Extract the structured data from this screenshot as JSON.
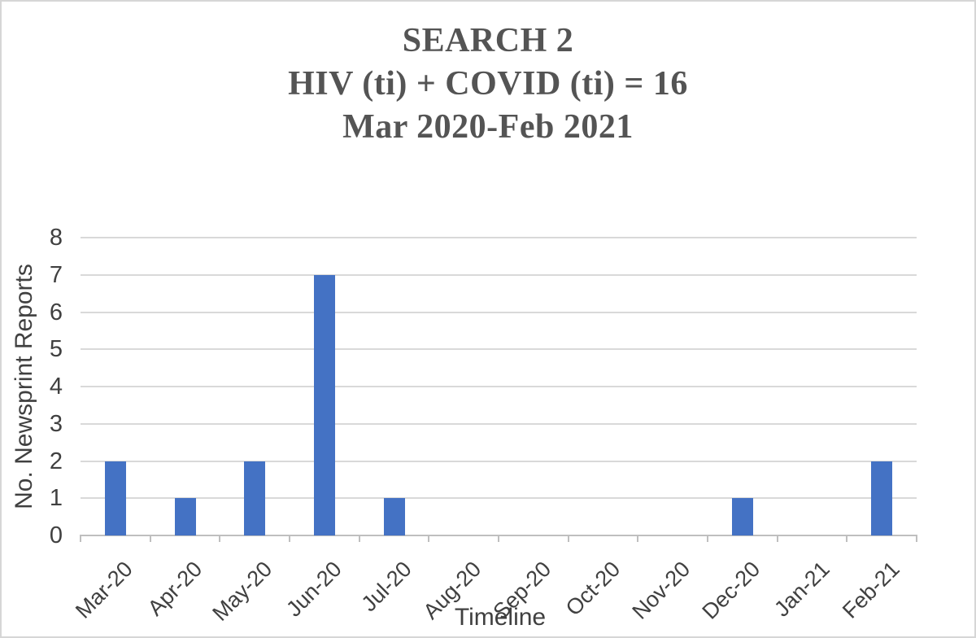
{
  "chart_data": {
    "type": "bar",
    "title_lines": [
      "SEARCH 2",
      "HIV (ti) + COVID (ti) = 16",
      "Mar 2020-Feb 2021"
    ],
    "xlabel": "Timeline",
    "ylabel": "No. Newsprint Reports",
    "categories": [
      "Mar-20",
      "Apr-20",
      "May-20",
      "Jun-20",
      "Jul-20",
      "Aug-20",
      "Sep-20",
      "Oct-20",
      "Nov-20",
      "Dec-20",
      "Jan-21",
      "Feb-21"
    ],
    "values": [
      2,
      1,
      2,
      7,
      1,
      0,
      0,
      0,
      0,
      1,
      0,
      2
    ],
    "total": 16,
    "ylim": [
      0,
      8
    ],
    "yticks": [
      0,
      1,
      2,
      3,
      4,
      5,
      6,
      7,
      8
    ],
    "grid": true,
    "legend_position": "none",
    "colors": {
      "bar": "#4472C4",
      "gridline": "#D9D9D9",
      "axis_line": "#BFBFBF",
      "tick_label": "#404040",
      "title": "#545454",
      "figure_border": "#D6D6D6"
    }
  }
}
